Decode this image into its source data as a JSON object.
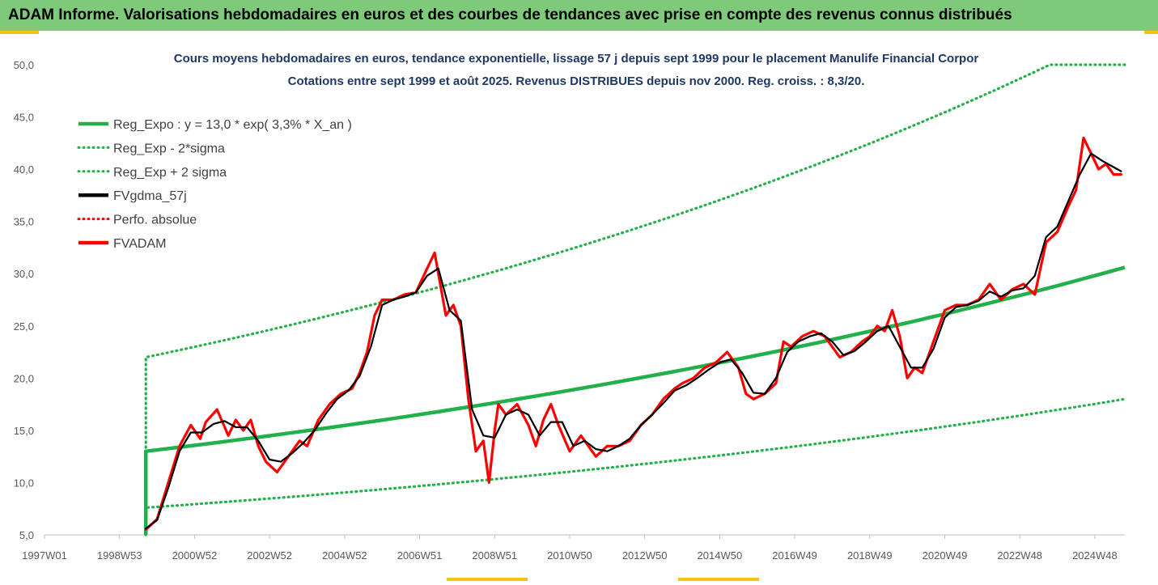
{
  "header": {
    "banner_title": "ADAM Informe. Valorisations hebdomadaires en euros et des courbes de tendances avec prise en compte des revenus connus distribués"
  },
  "colors": {
    "banner_bg": "#7ec97a",
    "trend_green": "#22b04a",
    "price_red": "#ff0000",
    "smooth_black": "#000000",
    "title_blue": "#1f3864"
  },
  "chart_data": {
    "type": "line",
    "title_line1": "Cours moyens hebdomadaires en euros, tendance exponentielle, lissage 57 j depuis sept 1999 pour le placement Manulife Financial Corpor",
    "title_line2": "Cotations entre sept 1999 et août 2025. Revenus DISTRIBUES depuis nov 2000. Reg. croiss. : 8,3/20.",
    "xlabel": "",
    "ylabel": "",
    "ylim": [
      5,
      50
    ],
    "xlim": [
      1997.0,
      2025.8
    ],
    "y_ticks": [
      "5,0",
      "10,0",
      "15,0",
      "20,0",
      "25,0",
      "30,0",
      "35,0",
      "40,0",
      "45,0",
      "50,0"
    ],
    "x_tick_labels": [
      "1997W01",
      "1998W53",
      "2000W52",
      "2002W52",
      "2004W52",
      "2006W51",
      "2008W51",
      "2010W50",
      "2012W50",
      "2014W50",
      "2016W49",
      "2018W49",
      "2020W49",
      "2022W48",
      "2024W48"
    ],
    "x_tick_years": [
      1997.0,
      1999.0,
      2001.0,
      2003.0,
      2005.0,
      2007.0,
      2009.0,
      2011.0,
      2013.0,
      2015.0,
      2017.0,
      2019.0,
      2021.0,
      2023.0,
      2025.0
    ],
    "grid": false,
    "legend_position": "top-left",
    "legend": [
      {
        "label": "Reg_Expo : y = 13,0 * exp( 3,3% *  X_an )",
        "style": "solid",
        "color": "#22b04a"
      },
      {
        "label": "Reg_Exp - 2*sigma",
        "style": "dotted",
        "color": "#22b04a"
      },
      {
        "label": "Reg_Exp + 2 sigma",
        "style": "dotted",
        "color": "#22b04a"
      },
      {
        "label": "FVgdma_57j",
        "style": "solid",
        "color": "#000000"
      },
      {
        "label": "Perfo. absolue",
        "style": "dotted",
        "color": "#ff0000"
      },
      {
        "label": "FVADAM",
        "style": "solid",
        "color": "#ff0000"
      }
    ],
    "series": [
      {
        "name": "Reg_Expo : y = 13,0 * exp( 3,3% *  X_an )",
        "x": [
          1999.7,
          1999.7,
          2025.8
        ],
        "y": [
          5.0,
          13.0,
          30.6
        ]
      },
      {
        "name": "Reg_Exp - 2*sigma",
        "x": [
          1999.7,
          1999.7,
          2025.8
        ],
        "y": [
          5.0,
          7.6,
          18.0
        ]
      },
      {
        "name": "Reg_Exp + 2 sigma",
        "x": [
          1999.7,
          1999.7,
          2023.8,
          2025.8
        ],
        "y": [
          5.0,
          22.0,
          50.0,
          50.0
        ]
      },
      {
        "name": "FVADAM",
        "x": [
          1999.7,
          2000.0,
          2000.3,
          2000.6,
          2000.9,
          2001.15,
          2001.3,
          2001.6,
          2001.9,
          2002.1,
          2002.3,
          2002.5,
          2002.7,
          2002.9,
          2003.2,
          2003.5,
          2003.8,
          2004.0,
          2004.3,
          2004.6,
          2004.9,
          2005.2,
          2005.4,
          2005.6,
          2005.8,
          2006.0,
          2006.3,
          2006.6,
          2006.9,
          2007.2,
          2007.4,
          2007.55,
          2007.7,
          2007.9,
          2008.1,
          2008.3,
          2008.5,
          2008.7,
          2008.85,
          2009.0,
          2009.1,
          2009.3,
          2009.6,
          2009.9,
          2010.1,
          2010.3,
          2010.5,
          2010.7,
          2011.0,
          2011.3,
          2011.5,
          2011.7,
          2012.0,
          2012.3,
          2012.6,
          2012.9,
          2013.2,
          2013.5,
          2013.8,
          2014.0,
          2014.3,
          2014.6,
          2014.9,
          2015.2,
          2015.5,
          2015.7,
          2015.9,
          2016.2,
          2016.5,
          2016.7,
          2016.9,
          2017.2,
          2017.5,
          2017.8,
          2018.0,
          2018.2,
          2018.5,
          2018.8,
          2019.0,
          2019.2,
          2019.4,
          2019.6,
          2019.8,
          2020.0,
          2020.2,
          2020.4,
          2020.7,
          2021.0,
          2021.3,
          2021.6,
          2021.9,
          2022.2,
          2022.5,
          2022.8,
          2023.1,
          2023.4,
          2023.7,
          2024.0,
          2024.3,
          2024.5,
          2024.7,
          2024.9,
          2025.1,
          2025.3,
          2025.5,
          2025.7
        ],
        "y": [
          5.5,
          6.5,
          10.0,
          13.5,
          15.5,
          14.2,
          15.8,
          17.0,
          14.5,
          16.0,
          15.0,
          16.0,
          13.5,
          12.0,
          11.0,
          12.5,
          14.0,
          13.5,
          16.0,
          17.5,
          18.5,
          19.0,
          20.5,
          22.5,
          26.0,
          27.5,
          27.5,
          28.0,
          28.2,
          30.5,
          32.0,
          29.0,
          26.0,
          27.0,
          25.0,
          18.0,
          13.0,
          14.0,
          10.0,
          15.0,
          17.5,
          16.5,
          17.5,
          15.5,
          13.5,
          16.0,
          17.5,
          15.5,
          13.0,
          14.5,
          13.5,
          12.5,
          13.5,
          13.5,
          14.0,
          15.5,
          16.5,
          18.0,
          19.0,
          19.5,
          20.0,
          21.0,
          21.5,
          22.5,
          21.0,
          18.5,
          18.0,
          18.5,
          19.5,
          23.5,
          23.0,
          24.0,
          24.5,
          24.0,
          23.0,
          22.0,
          22.5,
          23.5,
          24.0,
          25.0,
          24.5,
          26.5,
          24.0,
          20.0,
          21.0,
          20.5,
          23.5,
          26.5,
          27.0,
          27.0,
          27.5,
          29.0,
          27.5,
          28.5,
          29.0,
          28.0,
          33.0,
          34.0,
          36.5,
          38.0,
          43.0,
          41.5,
          40.0,
          40.5,
          39.5,
          39.5
        ]
      },
      {
        "name": "FVgdma_57j",
        "x": [
          1999.7,
          2000.0,
          2000.3,
          2000.6,
          2000.9,
          2001.2,
          2001.5,
          2001.8,
          2002.1,
          2002.4,
          2002.7,
          2003.0,
          2003.3,
          2003.6,
          2003.9,
          2004.2,
          2004.5,
          2004.8,
          2005.1,
          2005.4,
          2005.7,
          2006.0,
          2006.3,
          2006.6,
          2006.9,
          2007.2,
          2007.5,
          2007.8,
          2008.1,
          2008.4,
          2008.7,
          2009.0,
          2009.3,
          2009.6,
          2009.9,
          2010.2,
          2010.5,
          2010.8,
          2011.1,
          2011.4,
          2011.7,
          2012.0,
          2012.3,
          2012.6,
          2012.9,
          2013.2,
          2013.5,
          2013.8,
          2014.1,
          2014.4,
          2014.7,
          2015.0,
          2015.3,
          2015.6,
          2015.9,
          2016.2,
          2016.5,
          2016.8,
          2017.1,
          2017.4,
          2017.7,
          2018.0,
          2018.3,
          2018.6,
          2018.9,
          2019.2,
          2019.5,
          2019.8,
          2020.1,
          2020.4,
          2020.7,
          2021.0,
          2021.3,
          2021.6,
          2021.9,
          2022.2,
          2022.5,
          2022.8,
          2023.1,
          2023.4,
          2023.7,
          2024.0,
          2024.3,
          2024.6,
          2024.9,
          2025.2,
          2025.5,
          2025.7
        ],
        "y": [
          5.6,
          6.4,
          9.5,
          13.0,
          14.8,
          14.8,
          15.6,
          15.9,
          15.3,
          15.3,
          14.0,
          12.2,
          12.0,
          12.8,
          13.8,
          15.0,
          16.6,
          18.0,
          18.8,
          20.2,
          23.0,
          27.0,
          27.5,
          27.8,
          28.2,
          29.8,
          30.5,
          26.5,
          25.5,
          17.0,
          14.5,
          14.3,
          16.5,
          17.0,
          16.5,
          14.5,
          15.8,
          15.8,
          13.5,
          14.0,
          13.2,
          13.0,
          13.5,
          14.2,
          15.5,
          16.5,
          17.6,
          18.8,
          19.3,
          20.0,
          20.8,
          21.5,
          21.8,
          20.5,
          18.6,
          18.5,
          20.0,
          22.5,
          23.5,
          24.0,
          24.3,
          23.5,
          22.2,
          22.6,
          23.5,
          24.5,
          25.0,
          23.0,
          21.0,
          21.0,
          22.8,
          25.8,
          26.8,
          27.0,
          27.4,
          28.3,
          27.8,
          28.4,
          28.6,
          29.8,
          33.5,
          34.5,
          37.0,
          39.5,
          41.5,
          40.8,
          40.2,
          39.8
        ]
      }
    ]
  }
}
